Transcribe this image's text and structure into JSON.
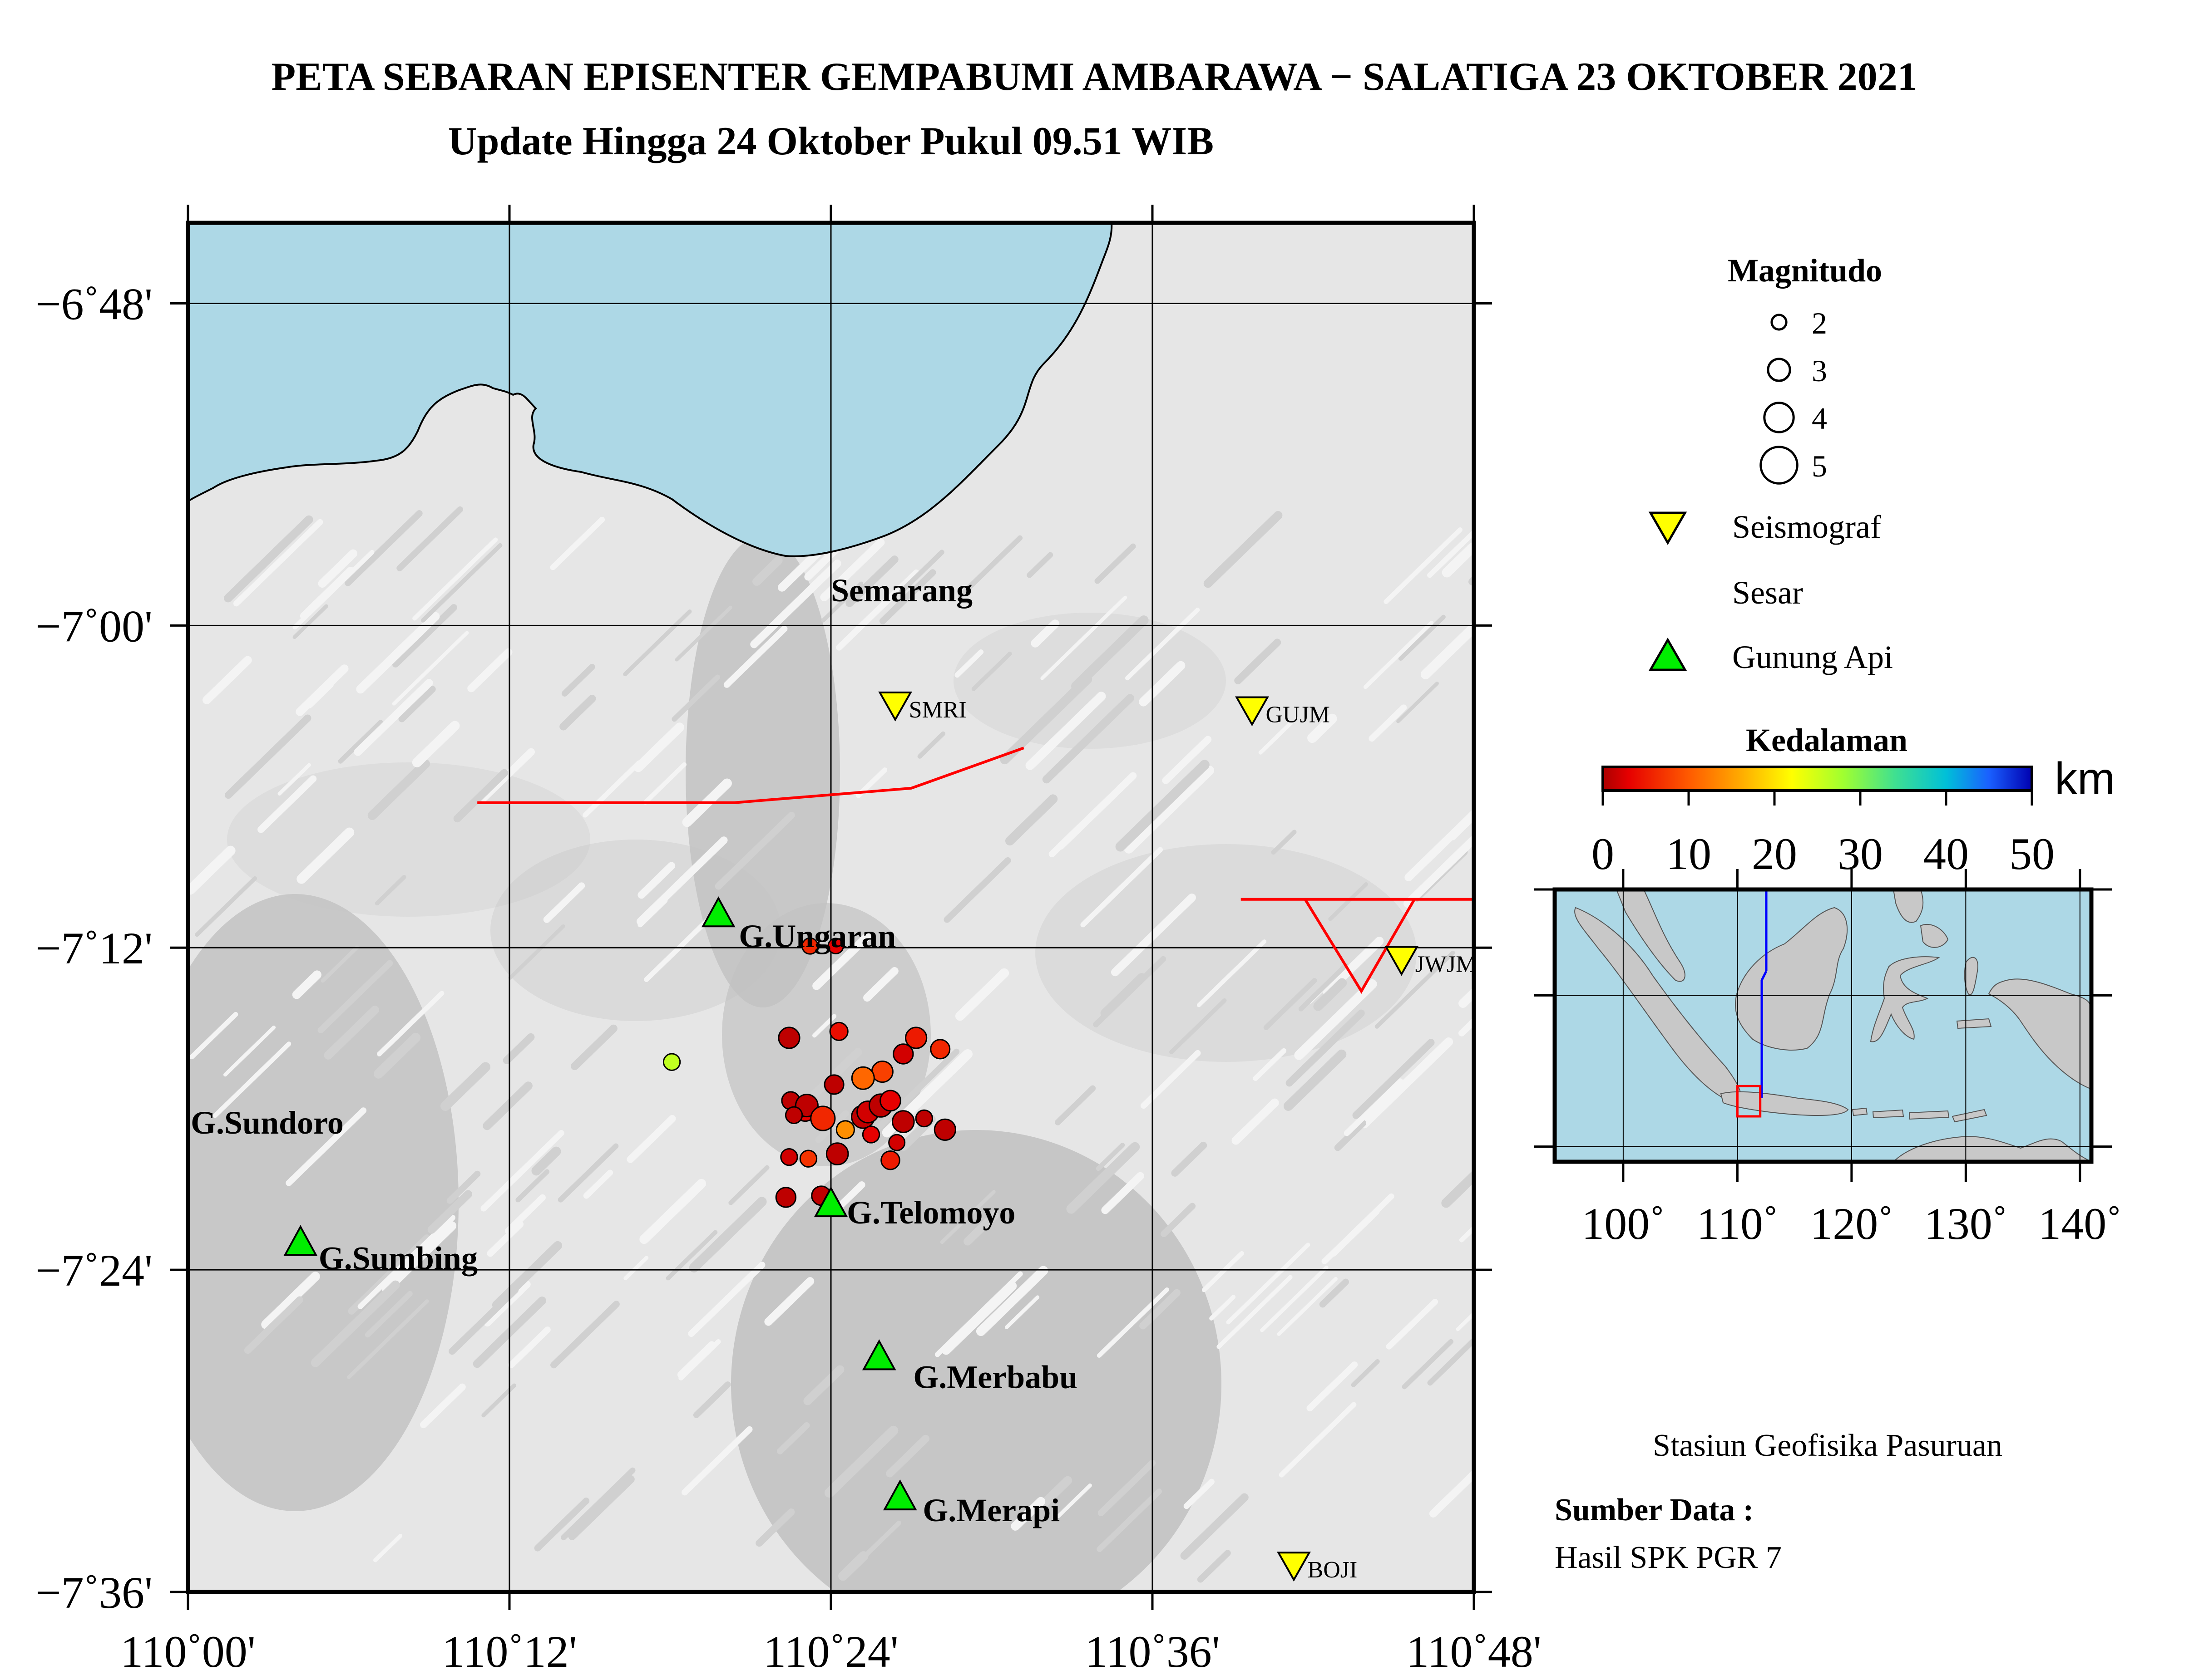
{
  "title": {
    "line1": "PETA SEBARAN EPISENTER GEMPABUMI AMBARAWA − SALATIGA 23 OKTOBER 2021",
    "line2": "Update Hingga 24 Oktober Pukul 09.51 WIB"
  },
  "map": {
    "lon_range": [
      110.0,
      110.8
    ],
    "lat_range": [
      -7.6,
      -6.75
    ],
    "x_ticks": [
      {
        "lon": 110.0,
        "label": "110˚00'"
      },
      {
        "lon": 110.2,
        "label": "110˚12'"
      },
      {
        "lon": 110.4,
        "label": "110˚24'"
      },
      {
        "lon": 110.6,
        "label": "110˚36'"
      },
      {
        "lon": 110.8,
        "label": "110˚48'"
      }
    ],
    "y_ticks": [
      {
        "lat": -6.8,
        "label": "−6˚48'"
      },
      {
        "lat": -7.0,
        "label": "−7˚00'"
      },
      {
        "lat": -7.2,
        "label": "−7˚12'"
      },
      {
        "lat": -7.4,
        "label": "−7˚24'"
      },
      {
        "lat": -7.6,
        "label": "−7˚36'"
      }
    ],
    "sea_color": "#add8e6",
    "land_color": "#e6e6e6",
    "relief_color": "#c2c2c2",
    "city": {
      "name": "Semarang",
      "lon": 110.4,
      "lat": -6.985
    },
    "volcanoes": [
      {
        "name": "G.Ungaran",
        "lon": 110.33,
        "lat": -7.18
      },
      {
        "name": "G.Telomoyo",
        "lon": 110.4,
        "lat": -7.36
      },
      {
        "name": "G.Merbabu",
        "lon": 110.43,
        "lat": -7.455
      },
      {
        "name": "G.Merapi",
        "lon": 110.443,
        "lat": -7.542
      },
      {
        "name": "G.Sumbing",
        "lon": 110.07,
        "lat": -7.384
      },
      {
        "name": "G.Sundoro",
        "lon": null,
        "lat": null
      }
    ],
    "stations": [
      {
        "name": "SMRI",
        "lon": 110.44,
        "lat": -7.05
      },
      {
        "name": "GUJM",
        "lon": 110.662,
        "lat": -7.053
      },
      {
        "name": "JWJM",
        "lon": 110.755,
        "lat": -7.208
      },
      {
        "name": "BOJI",
        "lon": 110.688,
        "lat": -7.584
      }
    ],
    "faults": [
      [
        [
          110.18,
          -7.11
        ],
        [
          110.34,
          -7.11
        ],
        [
          110.45,
          -7.101
        ],
        [
          110.52,
          -7.076
        ]
      ],
      [
        [
          110.655,
          -7.17
        ],
        [
          110.8,
          -7.17
        ]
      ],
      [
        [
          110.695,
          -7.17
        ],
        [
          110.73,
          -7.227
        ],
        [
          110.763,
          -7.17
        ]
      ]
    ],
    "epicenters": [
      {
        "lon": 110.301,
        "lat": -7.271,
        "mag": 2.6,
        "depth": 26
      },
      {
        "lon": 110.387,
        "lat": -7.199,
        "mag": 2.5,
        "depth": 6
      },
      {
        "lon": 110.403,
        "lat": -7.199,
        "mag": 2.4,
        "depth": 3
      },
      {
        "lon": 110.374,
        "lat": -7.256,
        "mag": 3.3,
        "depth": 1
      },
      {
        "lon": 110.405,
        "lat": -7.252,
        "mag": 2.8,
        "depth": 4
      },
      {
        "lon": 110.453,
        "lat": -7.256,
        "mag": 3.3,
        "depth": 5
      },
      {
        "lon": 110.468,
        "lat": -7.263,
        "mag": 3.0,
        "depth": 6
      },
      {
        "lon": 110.445,
        "lat": -7.266,
        "mag": 3.1,
        "depth": 2
      },
      {
        "lon": 110.432,
        "lat": -7.277,
        "mag": 3.3,
        "depth": 8
      },
      {
        "lon": 110.42,
        "lat": -7.281,
        "mag": 3.5,
        "depth": 11
      },
      {
        "lon": 110.402,
        "lat": -7.285,
        "mag": 3.0,
        "depth": 1
      },
      {
        "lon": 110.375,
        "lat": -7.295,
        "mag": 2.8,
        "depth": 1
      },
      {
        "lon": 110.384,
        "lat": -7.301,
        "mag": 3.4,
        "depth": 3
      },
      {
        "lon": 110.385,
        "lat": -7.298,
        "mag": 3.5,
        "depth": 1
      },
      {
        "lon": 110.395,
        "lat": -7.306,
        "mag": 3.8,
        "depth": 6
      },
      {
        "lon": 110.42,
        "lat": -7.305,
        "mag": 3.6,
        "depth": 1
      },
      {
        "lon": 110.423,
        "lat": -7.302,
        "mag": 3.4,
        "depth": 2
      },
      {
        "lon": 110.431,
        "lat": -7.298,
        "mag": 3.6,
        "depth": 1
      },
      {
        "lon": 110.437,
        "lat": -7.295,
        "mag": 3.2,
        "depth": 3
      },
      {
        "lon": 110.445,
        "lat": -7.308,
        "mag": 3.4,
        "depth": 1
      },
      {
        "lon": 110.458,
        "lat": -7.306,
        "mag": 2.6,
        "depth": 1
      },
      {
        "lon": 110.377,
        "lat": -7.304,
        "mag": 2.6,
        "depth": 1
      },
      {
        "lon": 110.409,
        "lat": -7.313,
        "mag": 2.8,
        "depth": 14
      },
      {
        "lon": 110.425,
        "lat": -7.316,
        "mag": 2.6,
        "depth": 3
      },
      {
        "lon": 110.441,
        "lat": -7.321,
        "mag": 2.5,
        "depth": 2
      },
      {
        "lon": 110.404,
        "lat": -7.328,
        "mag": 3.4,
        "depth": 1
      },
      {
        "lon": 110.374,
        "lat": -7.33,
        "mag": 2.6,
        "depth": 2
      },
      {
        "lon": 110.386,
        "lat": -7.331,
        "mag": 2.6,
        "depth": 7
      },
      {
        "lon": 110.437,
        "lat": -7.332,
        "mag": 2.9,
        "depth": 5
      },
      {
        "lon": 110.471,
        "lat": -7.313,
        "mag": 3.3,
        "depth": 1
      },
      {
        "lon": 110.372,
        "lat": -7.355,
        "mag": 3.1,
        "depth": 1
      },
      {
        "lon": 110.394,
        "lat": -7.354,
        "mag": 3.0,
        "depth": 1
      }
    ]
  },
  "legend": {
    "magnitude_title": "Magnitudo",
    "magnitudes": [
      {
        "label": "2",
        "mag": 2
      },
      {
        "label": "3",
        "mag": 3
      },
      {
        "label": "4",
        "mag": 4
      },
      {
        "label": "5",
        "mag": 5
      }
    ],
    "seismograph_label": "Seismograf",
    "fault_label": "Sesar",
    "volcano_label": "Gunung Api",
    "depth_title": "Kedalaman",
    "depth_unit": "km",
    "depth_ticks": [
      "0",
      "10",
      "20",
      "30",
      "40",
      "50"
    ],
    "depth_range": [
      0,
      50
    ],
    "seismograph_color": "#ffff00",
    "volcano_color": "#00ee00",
    "fault_color": "#ff0000"
  },
  "inset": {
    "lon_range": [
      94,
      141
    ],
    "lat_range": [
      -11,
      7
    ],
    "x_ticks": [
      {
        "lon": 100,
        "label": "100˚"
      },
      {
        "lon": 110,
        "label": "110˚"
      },
      {
        "lon": 120,
        "label": "120˚"
      },
      {
        "lon": 130,
        "label": "130˚"
      },
      {
        "lon": 140,
        "label": "140˚"
      }
    ],
    "grid_lats": [
      0,
      -10
    ],
    "area_box": {
      "lon_min": 110,
      "lon_max": 112,
      "lat_min": -8,
      "lat_max": -6
    }
  },
  "footer": {
    "agency": "Stasiun Geofisika Pasuruan",
    "source_title": "Sumber Data :",
    "source": "Hasil SPK PGR 7"
  }
}
